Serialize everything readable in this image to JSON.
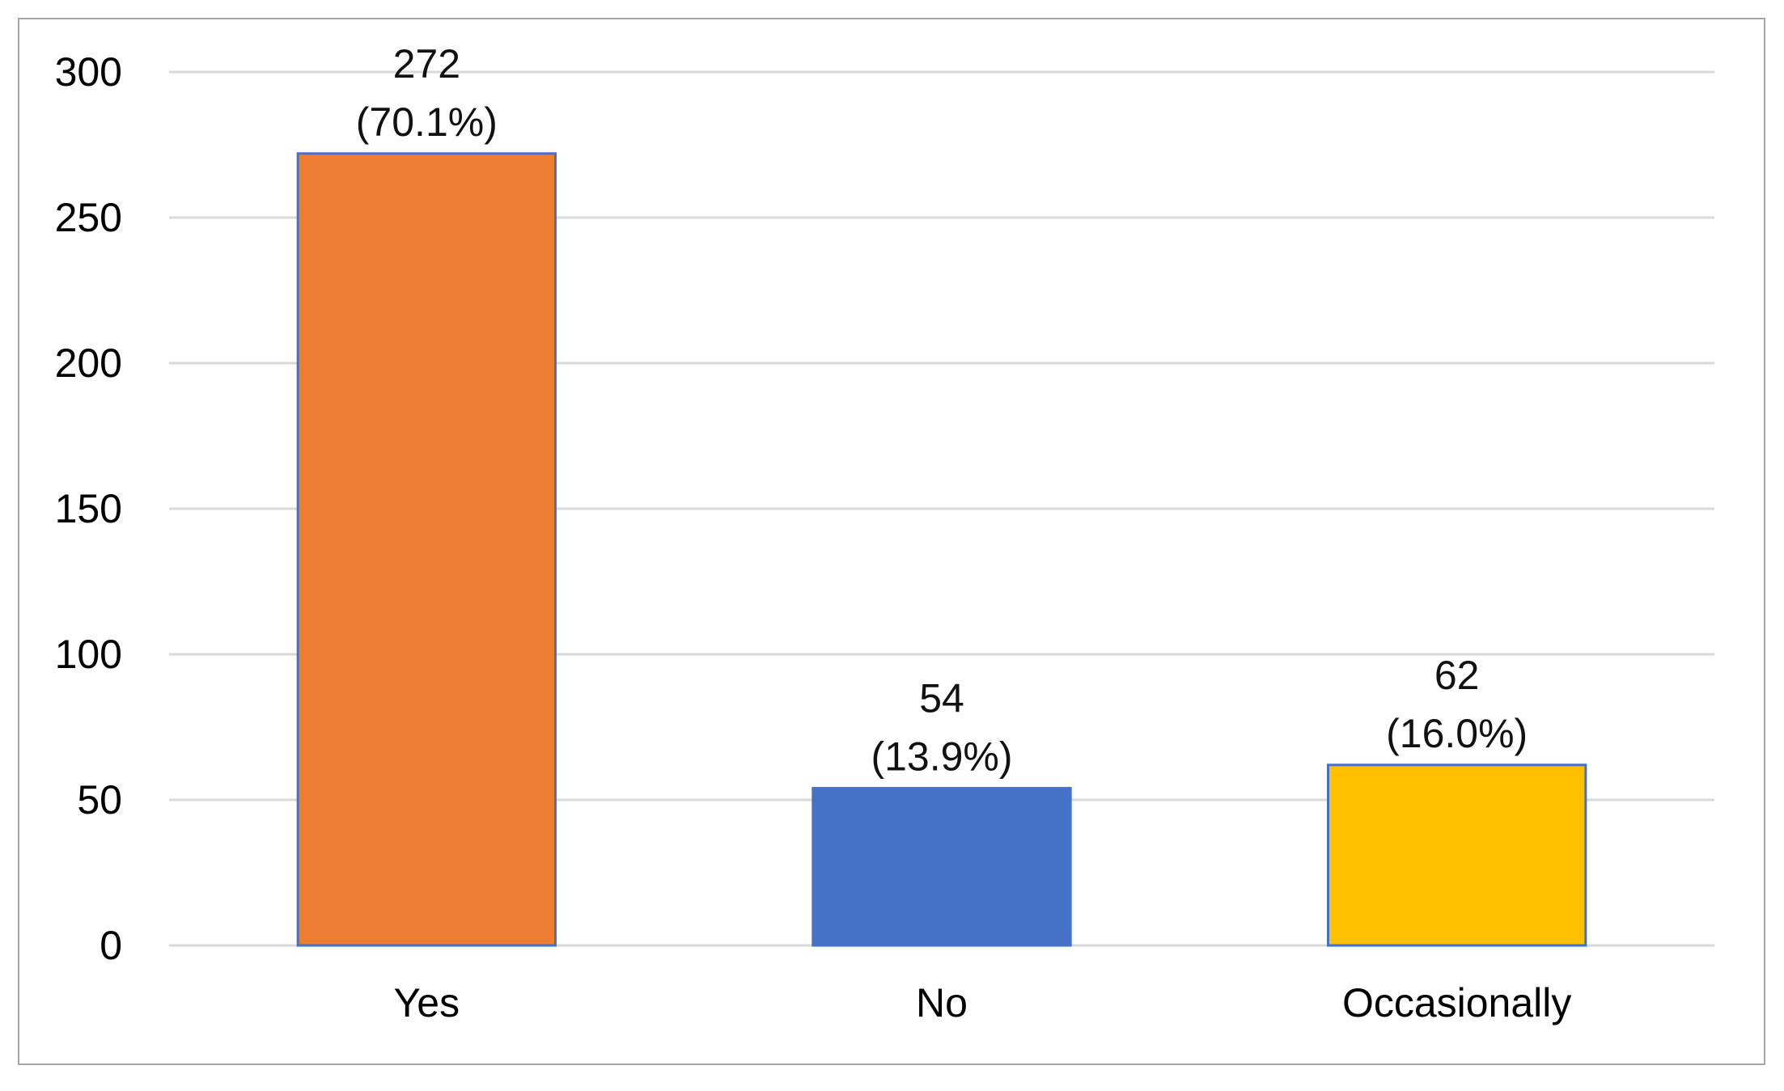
{
  "chart_data": {
    "type": "bar",
    "categories": [
      "Yes",
      "No",
      "Occasionally"
    ],
    "values": [
      272,
      54,
      62
    ],
    "data_labels": [
      [
        "272",
        "(70.1%)"
      ],
      [
        "54",
        "(13.9%)"
      ],
      [
        "62",
        "(16.0%)"
      ]
    ],
    "colors": [
      "#ED7D31",
      "#4472C4",
      "#FFC000"
    ],
    "bar_edge_color": "#4472C4",
    "ylim": [
      0,
      300
    ],
    "yticks": [
      0,
      50,
      100,
      150,
      200,
      250,
      300
    ],
    "grid": true,
    "title": "",
    "xlabel": "",
    "ylabel": ""
  }
}
